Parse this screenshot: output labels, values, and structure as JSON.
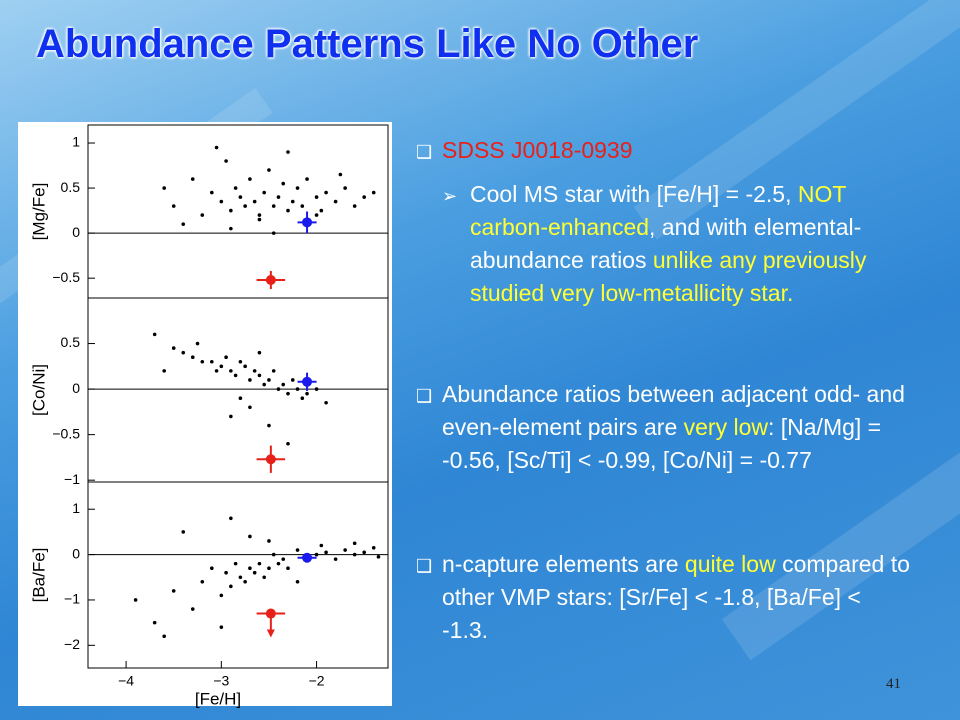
{
  "title": "Abundance Patterns Like No Other",
  "bullets": [
    {
      "segments": [
        {
          "text": "SDSS J0018-0939",
          "color": "#e8201a"
        }
      ]
    },
    {
      "segments": [
        {
          "text": " Cool MS star with [Fe/H] = -2.5, ",
          "color": "#ffffff"
        },
        {
          "text": "NOT carbon-enhanced",
          "color": "#ffff33"
        },
        {
          "text": ", and with elemental-abundance ratios ",
          "color": "#ffffff"
        },
        {
          "text": "unlike any previously studied very low-metallicity star.",
          "color": "#ffff33"
        }
      ]
    },
    {
      "segments": [
        {
          "text": "Abundance ratios between adjacent odd- and even-element pairs are ",
          "color": "#ffffff"
        },
        {
          "text": "very low",
          "color": "#ffff33"
        },
        {
          "text": ": [Na/Mg] = -0.56, [Sc/Ti] < -0.99, [Co/Ni] = -0.77",
          "color": "#ffffff"
        }
      ]
    },
    {
      "segments": [
        {
          "text": "n-capture elements are ",
          "color": "#ffffff"
        },
        {
          "text": "quite low",
          "color": "#ffff33"
        },
        {
          "text": " compared to other VMP stars: [Sr/Fe] < -1.8, [Ba/Fe] < -1.3.",
          "color": "#ffffff"
        }
      ]
    }
  ],
  "page_number": "41",
  "chart_data": [
    {
      "type": "scatter",
      "ylabel": "[Mg/Fe]",
      "xlim": [
        -4.4,
        -1.25
      ],
      "ylim": [
        -0.72,
        1.2
      ],
      "yticks": [
        1,
        0.5,
        0,
        {
          "value": -0.5,
          "label": "−0.5"
        }
      ],
      "hline": 0,
      "series": [
        {
          "color": "#000000",
          "x": [
            -3.6,
            -3.5,
            -3.3,
            -3.2,
            -3.1,
            -3.0,
            -2.95,
            -2.9,
            -2.85,
            -2.8,
            -2.75,
            -2.7,
            -2.65,
            -2.6,
            -2.55,
            -2.5,
            -2.45,
            -2.4,
            -2.35,
            -2.3,
            -2.25,
            -2.2,
            -2.15,
            -2.1,
            -2.0,
            -1.95,
            -1.9,
            -1.8,
            -1.7,
            -1.6,
            -1.5,
            -1.4,
            -3.4,
            -2.9,
            -2.6,
            -2.3,
            -2.0,
            -1.75,
            -3.05,
            -2.45
          ],
          "values": [
            0.5,
            0.3,
            0.6,
            0.2,
            0.45,
            0.35,
            0.8,
            0.25,
            0.5,
            0.4,
            0.3,
            0.6,
            0.35,
            0.2,
            0.45,
            0.7,
            0.3,
            0.4,
            0.55,
            0.25,
            0.35,
            0.5,
            0.3,
            0.6,
            0.4,
            0.25,
            0.45,
            0.35,
            0.5,
            0.3,
            0.4,
            0.45,
            0.1,
            0.05,
            0.15,
            0.9,
            0.2,
            0.65,
            0.95,
            0.0
          ]
        },
        {
          "color": "#e8201a",
          "x": [
            -2.48
          ],
          "values": [
            -0.52
          ],
          "xerr": [
            0.15
          ],
          "yerr": [
            0.1
          ]
        },
        {
          "color": "#1a1aee",
          "x": [
            -2.1
          ],
          "values": [
            0.12
          ],
          "xerr": [
            0.1
          ],
          "yerr": [
            0.12
          ]
        }
      ]
    },
    {
      "type": "scatter",
      "ylabel": "[Co/Ni]",
      "xlim": [
        -4.4,
        -1.25
      ],
      "ylim": [
        -1.02,
        1.0
      ],
      "yticks": [
        0.5,
        0,
        {
          "value": -0.5,
          "label": "−0.5"
        },
        {
          "value": -1,
          "label": "−1"
        }
      ],
      "hline": 0,
      "series": [
        {
          "color": "#000000",
          "x": [
            -3.7,
            -3.5,
            -3.4,
            -3.3,
            -3.2,
            -3.1,
            -3.05,
            -3.0,
            -2.95,
            -2.9,
            -2.85,
            -2.8,
            -2.75,
            -2.7,
            -2.65,
            -2.6,
            -2.55,
            -2.5,
            -2.45,
            -2.4,
            -2.35,
            -2.3,
            -2.25,
            -2.2,
            -2.15,
            -2.1,
            -2.0,
            -1.9,
            -3.25,
            -2.9,
            -2.7,
            -2.5,
            -2.3,
            -2.6,
            -3.6,
            -2.8
          ],
          "values": [
            0.6,
            0.45,
            0.4,
            0.35,
            0.3,
            0.3,
            0.2,
            0.25,
            0.35,
            0.2,
            0.15,
            0.3,
            0.25,
            0.1,
            0.2,
            0.15,
            0.05,
            0.1,
            0.2,
            0.0,
            0.05,
            -0.05,
            0.1,
            0.0,
            -0.1,
            -0.05,
            0.0,
            -0.15,
            0.5,
            -0.3,
            -0.2,
            -0.4,
            -0.6,
            0.4,
            0.2,
            -0.1
          ]
        },
        {
          "color": "#e8201a",
          "x": [
            -2.48
          ],
          "values": [
            -0.77
          ],
          "xerr": [
            0.15
          ],
          "yerr": [
            0.15
          ]
        },
        {
          "color": "#1a1aee",
          "x": [
            -2.1
          ],
          "values": [
            0.08
          ],
          "xerr": [
            0.1
          ],
          "yerr": [
            0.1
          ]
        }
      ]
    },
    {
      "type": "scatter",
      "ylabel": "[Ba/Fe]",
      "xlabel": "[Fe/H]",
      "xlim": [
        -4.4,
        -1.25
      ],
      "ylim": [
        -2.5,
        1.6
      ],
      "yticks": [
        1,
        0,
        {
          "value": -1,
          "label": "−1"
        },
        {
          "value": -2,
          "label": "−2"
        }
      ],
      "hline": 0,
      "xticks": [
        {
          "value": -4,
          "label": "−4"
        },
        {
          "value": -3,
          "label": "−3"
        },
        {
          "value": -2,
          "label": "−2"
        }
      ],
      "series": [
        {
          "color": "#000000",
          "x": [
            -3.9,
            -3.7,
            -3.5,
            -3.3,
            -3.2,
            -3.1,
            -3.0,
            -2.95,
            -2.9,
            -2.85,
            -2.8,
            -2.75,
            -2.7,
            -2.65,
            -2.6,
            -2.55,
            -2.5,
            -2.45,
            -2.4,
            -2.35,
            -2.3,
            -2.2,
            -2.1,
            -2.0,
            -1.9,
            -1.8,
            -1.7,
            -1.6,
            -1.5,
            -1.4,
            -1.35,
            -3.4,
            -3.0,
            -2.7,
            -2.5,
            -2.2,
            -1.95,
            -3.6,
            -2.9,
            -1.6
          ],
          "values": [
            -1.0,
            -1.5,
            -0.8,
            -1.2,
            -0.6,
            -0.3,
            -0.9,
            -0.4,
            -0.7,
            -0.2,
            -0.5,
            -0.6,
            -0.3,
            -0.4,
            -0.2,
            -0.5,
            -0.3,
            0.0,
            -0.2,
            -0.1,
            -0.3,
            0.1,
            -0.1,
            0.0,
            0.05,
            -0.1,
            0.1,
            0.0,
            0.05,
            0.15,
            -0.05,
            0.5,
            -1.6,
            0.4,
            0.3,
            -0.6,
            0.2,
            -1.8,
            0.8,
            0.25
          ]
        },
        {
          "color": "#e8201a",
          "x": [
            -2.48
          ],
          "values": [
            -1.3
          ],
          "xerr": [
            0.15
          ],
          "upper_limit": true
        },
        {
          "color": "#1a1aee",
          "x": [
            -2.1
          ],
          "values": [
            -0.07
          ],
          "xerr": [
            0.1
          ],
          "yerr": [
            0.08
          ]
        }
      ]
    }
  ]
}
